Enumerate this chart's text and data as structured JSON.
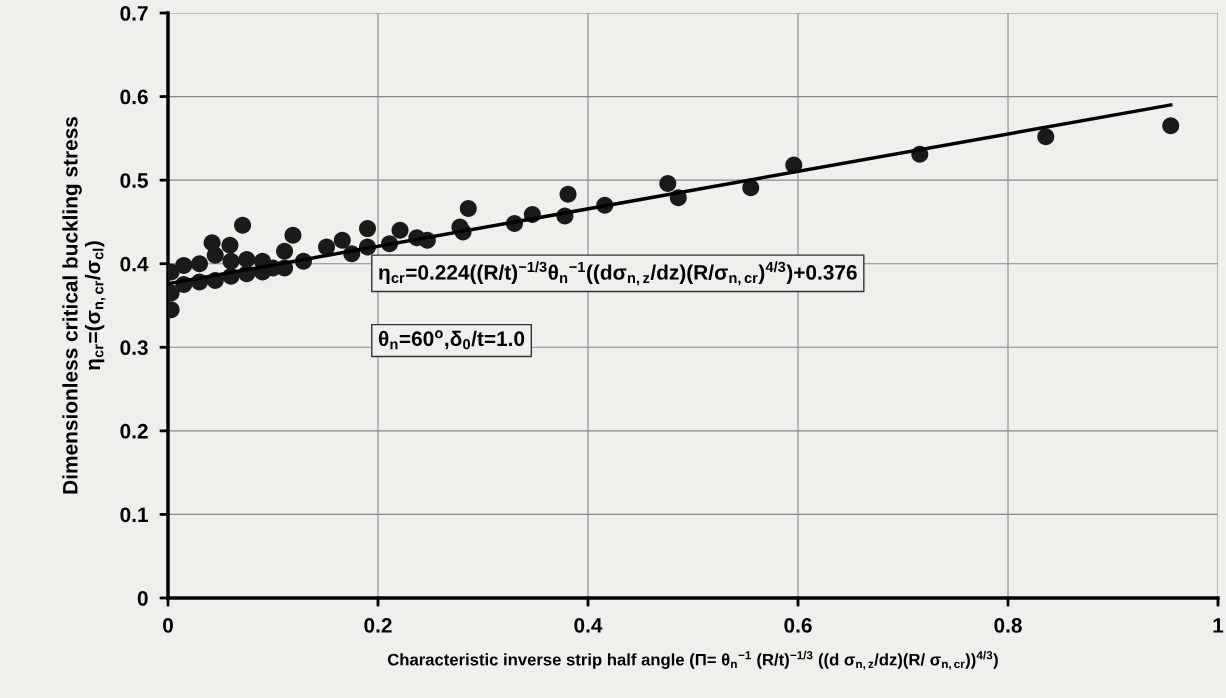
{
  "chart_data": {
    "type": "scatter",
    "xlabel": "Characteristic inverse strip half angle (Π= θ$_{n}$$^{−1}$ (R/t)$^{−1/3}$ ((d σ$_{n,z}$/dz)(R/ σ$_{n,cr}$))$^{4/3}$)",
    "ylabel": "Dimensionless critical buckling stress\nη$_{cr}$=(σ$_{n,cr}$/σ$_{cl}$)",
    "annotations": [
      "η$_{cr}$=0.224((R/t)$^{−1/3}$θ$_{n}$$^{−1}$((dσ$_{n,z}$/dz)(R/σ$_{n,cr}$)$^{4/3}$)+0.376",
      "θ$_{n}$=60$^{o}$,δ$_{0}$/t=1.0"
    ],
    "xlim": [
      0,
      1
    ],
    "ylim": [
      0,
      0.7
    ],
    "xticks": [
      0,
      0.2,
      0.4,
      0.6,
      0.8,
      1
    ],
    "yticks": [
      0,
      0.1,
      0.2,
      0.3,
      0.4,
      0.5,
      0.6,
      0.7
    ],
    "grid": true,
    "legend": false,
    "series": [
      {
        "color": "#1a1a1a",
        "marker": "circle",
        "x": [
          0.003,
          0.003,
          0.003,
          0.015,
          0.015,
          0.03,
          0.03,
          0.045,
          0.045,
          0.06,
          0.06,
          0.075,
          0.075,
          0.09,
          0.09,
          0.1,
          0.042,
          0.059,
          0.071,
          0.111,
          0.111,
          0.119,
          0.129,
          0.151,
          0.166,
          0.175,
          0.19,
          0.19,
          0.211,
          0.221,
          0.237,
          0.247,
          0.278,
          0.281,
          0.286,
          0.33,
          0.347,
          0.378,
          0.381,
          0.416,
          0.476,
          0.486,
          0.555,
          0.596,
          0.716,
          0.836,
          0.955
        ],
        "values": [
          0.345,
          0.365,
          0.39,
          0.375,
          0.398,
          0.378,
          0.4,
          0.38,
          0.41,
          0.385,
          0.403,
          0.388,
          0.405,
          0.39,
          0.403,
          0.395,
          0.425,
          0.422,
          0.446,
          0.415,
          0.395,
          0.434,
          0.403,
          0.42,
          0.428,
          0.412,
          0.42,
          0.442,
          0.424,
          0.44,
          0.431,
          0.428,
          0.444,
          0.438,
          0.466,
          0.448,
          0.459,
          0.457,
          0.483,
          0.47,
          0.496,
          0.479,
          0.491,
          0.518,
          0.531,
          0.552,
          0.565
        ]
      },
      {
        "type": "line",
        "color": "#000000",
        "marker": "none",
        "line_style": "solid",
        "x": [
          0,
          0.955
        ],
        "values": [
          0.376,
          0.59
        ]
      }
    ]
  }
}
